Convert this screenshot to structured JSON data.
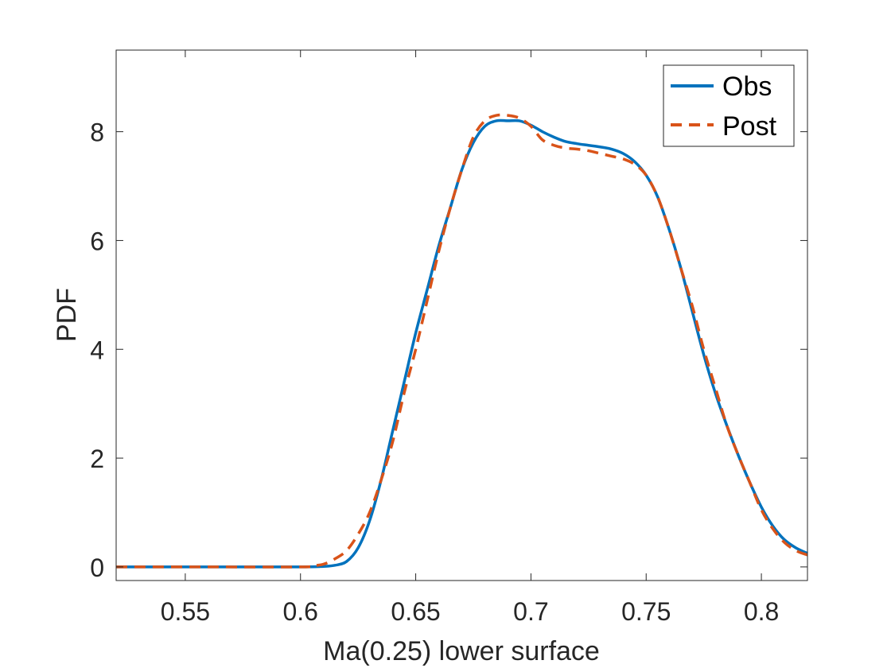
{
  "chart_data": {
    "type": "line",
    "title": "",
    "xlabel": "Ma(0.25) lower surface",
    "ylabel": "PDF",
    "xlim": [
      0.52,
      0.82
    ],
    "ylim": [
      -0.25,
      9.5
    ],
    "grid": false,
    "legend_position": "top-right",
    "x_ticks": [
      {
        "value": 0.55,
        "label": "0.55"
      },
      {
        "value": 0.6,
        "label": "0.6"
      },
      {
        "value": 0.65,
        "label": "0.65"
      },
      {
        "value": 0.7,
        "label": "0.7"
      },
      {
        "value": 0.75,
        "label": "0.75"
      },
      {
        "value": 0.8,
        "label": "0.8"
      }
    ],
    "y_ticks": [
      {
        "value": 0,
        "label": "0"
      },
      {
        "value": 2,
        "label": "2"
      },
      {
        "value": 4,
        "label": "4"
      },
      {
        "value": 6,
        "label": "6"
      },
      {
        "value": 8,
        "label": "8"
      }
    ],
    "series": [
      {
        "name": "Obs",
        "color": "#0072BD",
        "style": "solid",
        "x": [
          0.52,
          0.56,
          0.6,
          0.61,
          0.615,
          0.62,
          0.625,
          0.63,
          0.635,
          0.64,
          0.645,
          0.65,
          0.655,
          0.66,
          0.665,
          0.67,
          0.675,
          0.68,
          0.685,
          0.69,
          0.695,
          0.7,
          0.705,
          0.71,
          0.715,
          0.72,
          0.725,
          0.73,
          0.735,
          0.74,
          0.745,
          0.75,
          0.755,
          0.76,
          0.765,
          0.77,
          0.775,
          0.78,
          0.785,
          0.79,
          0.795,
          0.8,
          0.805,
          0.81,
          0.815,
          0.82
        ],
        "y": [
          0,
          0,
          0,
          0.01,
          0.03,
          0.1,
          0.35,
          0.85,
          1.6,
          2.5,
          3.4,
          4.3,
          5.1,
          5.9,
          6.6,
          7.3,
          7.8,
          8.1,
          8.2,
          8.2,
          8.2,
          8.12,
          8.0,
          7.9,
          7.82,
          7.78,
          7.75,
          7.72,
          7.68,
          7.6,
          7.45,
          7.2,
          6.8,
          6.2,
          5.5,
          4.7,
          3.9,
          3.2,
          2.6,
          2.05,
          1.55,
          1.1,
          0.75,
          0.5,
          0.35,
          0.25
        ]
      },
      {
        "name": "Post",
        "color": "#D95319",
        "style": "dashed",
        "x": [
          0.52,
          0.56,
          0.6,
          0.605,
          0.61,
          0.615,
          0.62,
          0.625,
          0.63,
          0.635,
          0.64,
          0.645,
          0.65,
          0.655,
          0.66,
          0.665,
          0.67,
          0.675,
          0.68,
          0.685,
          0.69,
          0.695,
          0.7,
          0.705,
          0.71,
          0.715,
          0.72,
          0.725,
          0.73,
          0.735,
          0.74,
          0.745,
          0.75,
          0.755,
          0.76,
          0.765,
          0.77,
          0.775,
          0.78,
          0.785,
          0.79,
          0.795,
          0.8,
          0.805,
          0.81,
          0.815,
          0.82
        ],
        "y": [
          0,
          0,
          0,
          0.02,
          0.05,
          0.15,
          0.3,
          0.6,
          1.0,
          1.6,
          2.3,
          3.2,
          4.0,
          4.9,
          5.8,
          6.6,
          7.3,
          7.9,
          8.2,
          8.3,
          8.3,
          8.25,
          8.1,
          7.85,
          7.75,
          7.7,
          7.68,
          7.65,
          7.6,
          7.55,
          7.5,
          7.4,
          7.2,
          6.8,
          6.2,
          5.5,
          4.8,
          4.0,
          3.3,
          2.6,
          2.05,
          1.55,
          1.05,
          0.7,
          0.45,
          0.3,
          0.22
        ]
      }
    ]
  }
}
